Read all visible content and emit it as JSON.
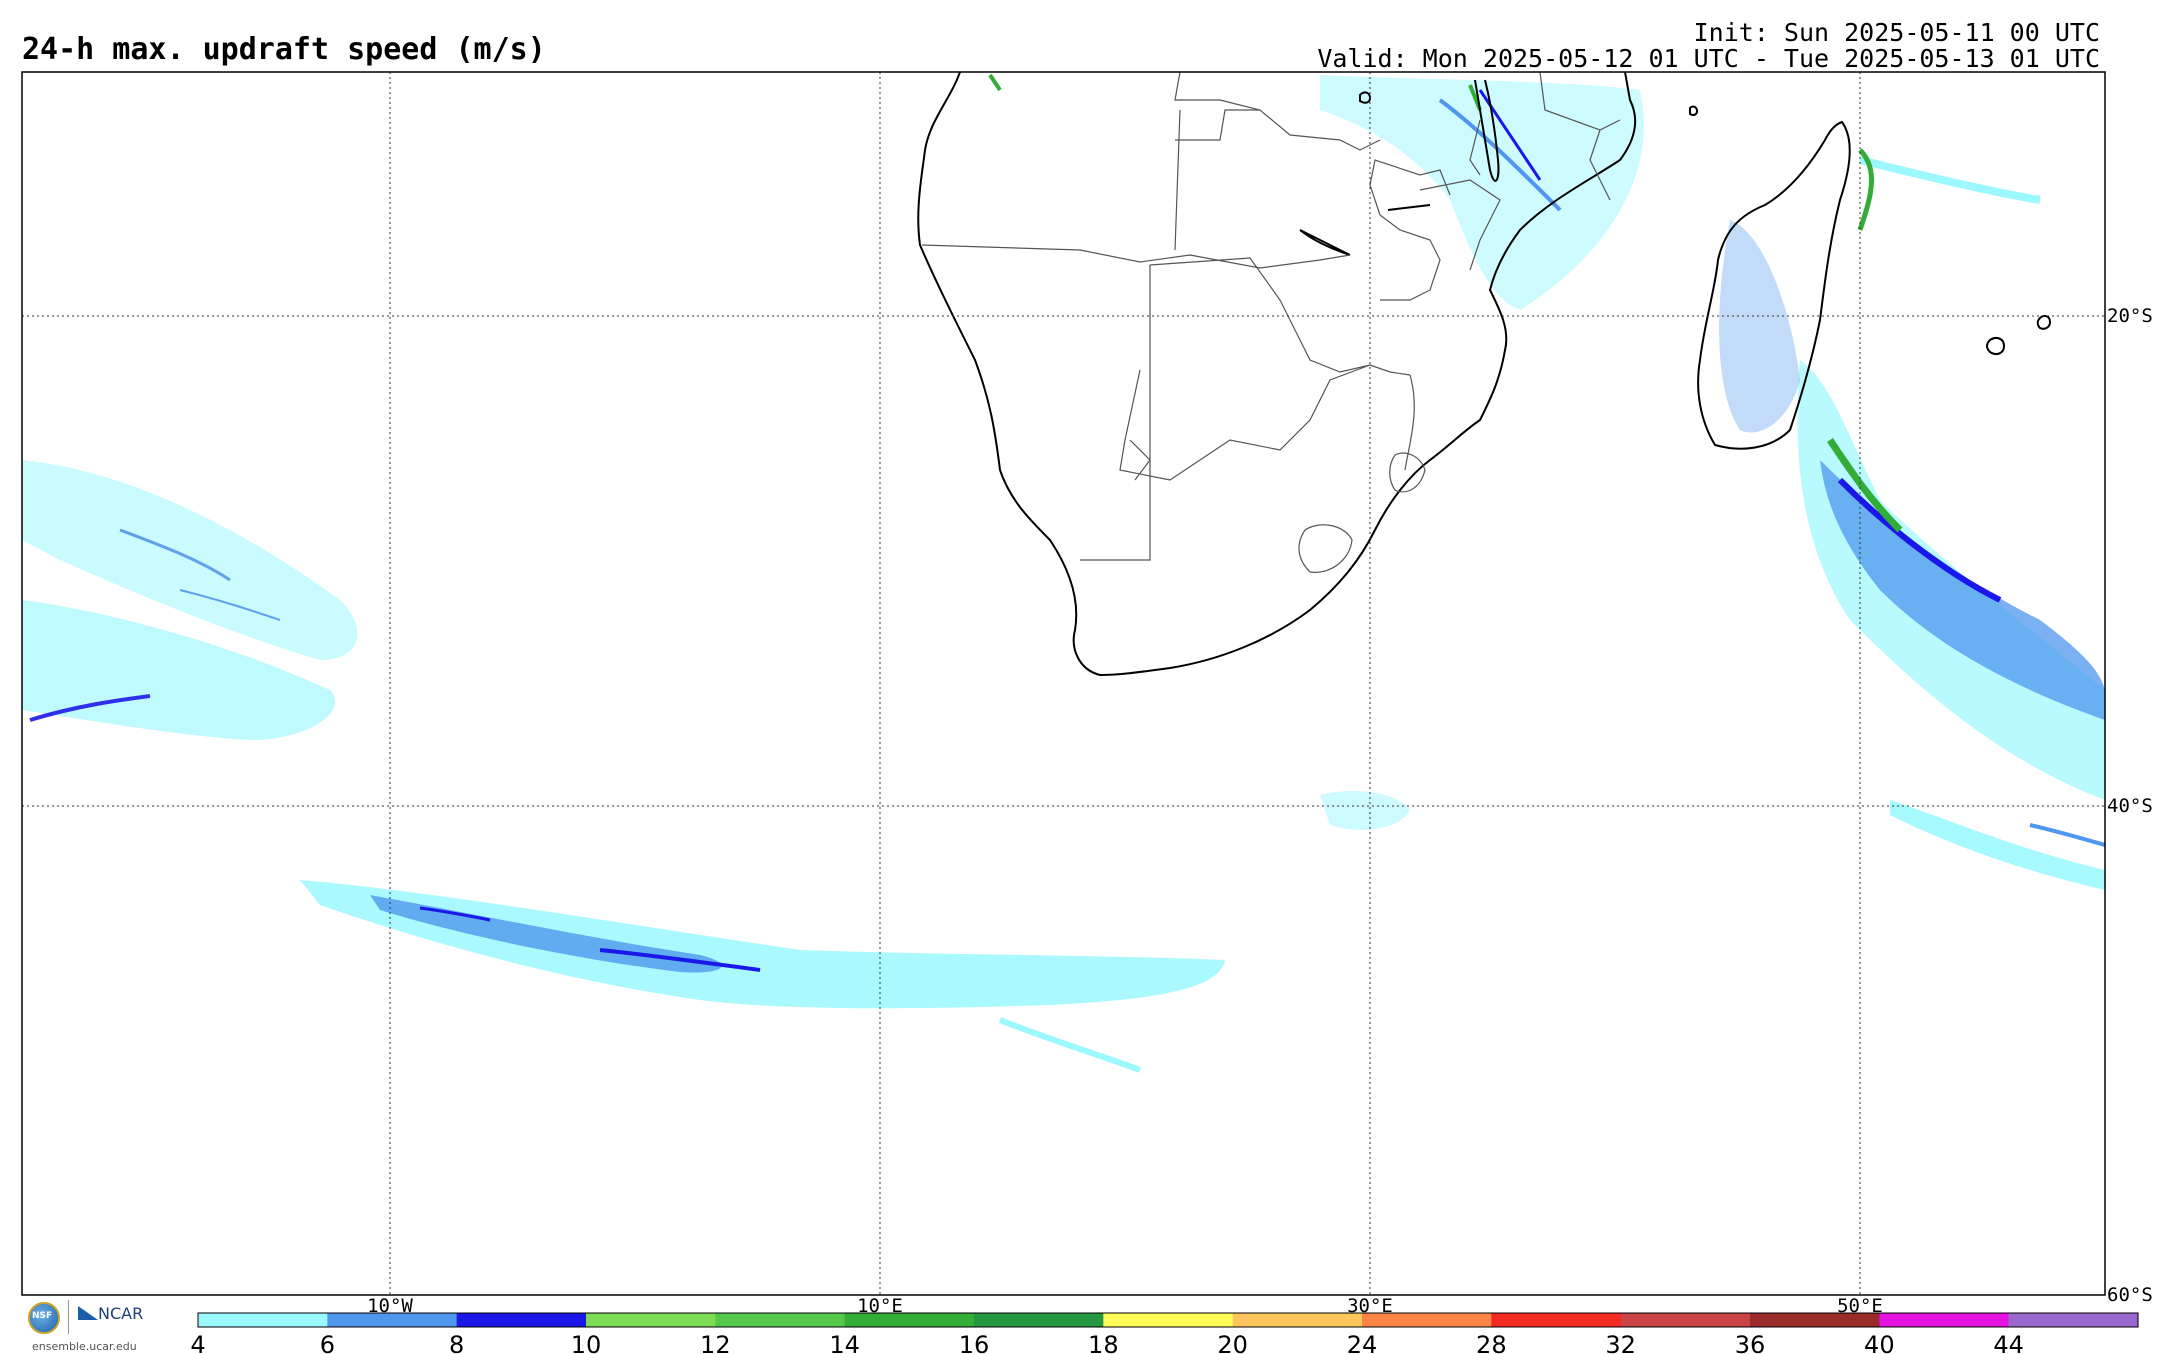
{
  "header": {
    "title": "24-h max. updraft speed (m/s)",
    "init": "Init: Sun 2025-05-11 00 UTC",
    "valid": "Valid: Mon 2025-05-12 01 UTC - Tue 2025-05-13 01 UTC"
  },
  "map": {
    "region": "Southern Africa and South Atlantic / Indian Ocean",
    "lon_range": [
      -25,
      60
    ],
    "lat_range": [
      -60,
      -10
    ],
    "lat_labels": [
      "20°S",
      "40°S",
      "60°S"
    ],
    "lon_labels": [
      "10°W",
      "10°E",
      "30°E",
      "50°E"
    ],
    "background_color": "#ffffff",
    "coastline_color": "#000000",
    "border_color": "#555555",
    "gridline_style": "dotted"
  },
  "colorbar": {
    "ticks": [
      "4",
      "6",
      "8",
      "10",
      "12",
      "14",
      "16",
      "18",
      "20",
      "24",
      "28",
      "32",
      "36",
      "40",
      "44"
    ],
    "colors": [
      "#9bf8ff",
      "#4f97ee",
      "#1a18e8",
      "#7ddc54",
      "#55c84a",
      "#33ac38",
      "#259641",
      "#ffff57",
      "#ffc65e",
      "#ff8446",
      "#f42a22",
      "#c94545",
      "#9b2b2b",
      "#e512df",
      "#9966cc"
    ]
  },
  "branding": {
    "nsf_mark": "NSF",
    "ncar_mark": "NCAR",
    "url": "ensemble.ucar.edu"
  }
}
